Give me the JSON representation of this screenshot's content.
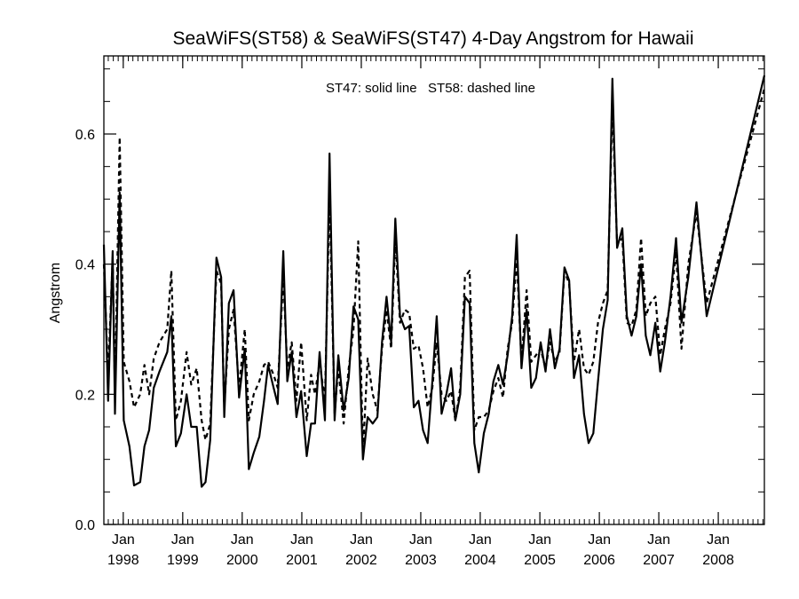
{
  "chart_data": {
    "type": "line",
    "title": "SeaWiFS(ST58) & SeaWiFS(ST47) 4-Day Angstrom for Hawaii",
    "annotation": "ST47: solid line   ST58: dashed line",
    "xlabel": "",
    "ylabel": "Angstrom",
    "xlim": [
      "1997-09-04",
      "2008-10-10"
    ],
    "ylim": [
      0.0,
      0.72
    ],
    "yticks": [
      0.0,
      0.2,
      0.4,
      0.6
    ],
    "ytick_labels": [
      "0.0",
      "0.2",
      "0.4",
      "0.6"
    ],
    "xticks": [
      {
        "date": "1998-01-01",
        "month": "Jan",
        "year": "1998"
      },
      {
        "date": "1999-01-01",
        "month": "Jan",
        "year": "1999"
      },
      {
        "date": "2000-01-01",
        "month": "Jan",
        "year": "2000"
      },
      {
        "date": "2001-01-01",
        "month": "Jan",
        "year": "2001"
      },
      {
        "date": "2002-01-01",
        "month": "Jan",
        "year": "2002"
      },
      {
        "date": "2003-01-01",
        "month": "Jan",
        "year": "2003"
      },
      {
        "date": "2004-01-01",
        "month": "Jan",
        "year": "2004"
      },
      {
        "date": "2005-01-01",
        "month": "Jan",
        "year": "2005"
      },
      {
        "date": "2006-01-01",
        "month": "Jan",
        "year": "2006"
      },
      {
        "date": "2007-01-01",
        "month": "Jan",
        "year": "2007"
      },
      {
        "date": "2008-01-01",
        "month": "Jan",
        "year": "2008"
      }
    ],
    "grid": false,
    "legend": "none",
    "series": [
      {
        "name": "ST47",
        "style": "solid",
        "color": "#000000",
        "points": [
          [
            "1997-09-04",
            0.43
          ],
          [
            "1997-09-30",
            0.19
          ],
          [
            "1997-10-28",
            0.42
          ],
          [
            "1997-11-11",
            0.17
          ],
          [
            "1997-12-10",
            0.51
          ],
          [
            "1998-01-04",
            0.16
          ],
          [
            "1998-02-08",
            0.12
          ],
          [
            "1998-03-08",
            0.06
          ],
          [
            "1998-04-15",
            0.065
          ],
          [
            "1998-05-11",
            0.12
          ],
          [
            "1998-06-09",
            0.145
          ],
          [
            "1998-07-07",
            0.21
          ],
          [
            "1998-08-11",
            0.235
          ],
          [
            "1998-09-28",
            0.265
          ],
          [
            "1998-10-23",
            0.32
          ],
          [
            "1998-11-20",
            0.12
          ],
          [
            "1998-12-21",
            0.14
          ],
          [
            "1999-01-25",
            0.2
          ],
          [
            "1999-02-22",
            0.15
          ],
          [
            "1999-03-28",
            0.15
          ],
          [
            "1999-04-27",
            0.058
          ],
          [
            "1999-05-21",
            0.065
          ],
          [
            "1999-06-19",
            0.13
          ],
          [
            "1999-07-27",
            0.41
          ],
          [
            "1999-08-25",
            0.38
          ],
          [
            "1999-09-13",
            0.165
          ],
          [
            "1999-10-11",
            0.34
          ],
          [
            "1999-11-09",
            0.36
          ],
          [
            "1999-12-13",
            0.195
          ],
          [
            "2000-01-17",
            0.27
          ],
          [
            "2000-02-11",
            0.085
          ],
          [
            "2000-03-12",
            0.11
          ],
          [
            "2000-04-15",
            0.135
          ],
          [
            "2000-05-14",
            0.19
          ],
          [
            "2000-06-08",
            0.245
          ],
          [
            "2000-07-12",
            0.21
          ],
          [
            "2000-08-06",
            0.185
          ],
          [
            "2000-09-09",
            0.42
          ],
          [
            "2000-10-04",
            0.22
          ],
          [
            "2000-10-31",
            0.265
          ],
          [
            "2000-11-29",
            0.165
          ],
          [
            "2000-12-28",
            0.205
          ],
          [
            "2001-01-31",
            0.105
          ],
          [
            "2001-02-27",
            0.155
          ],
          [
            "2001-03-23",
            0.155
          ],
          [
            "2001-04-20",
            0.265
          ],
          [
            "2001-05-23",
            0.16
          ],
          [
            "2001-06-20",
            0.57
          ],
          [
            "2001-07-21",
            0.16
          ],
          [
            "2001-08-13",
            0.26
          ],
          [
            "2001-09-15",
            0.175
          ],
          [
            "2001-10-16",
            0.225
          ],
          [
            "2001-11-14",
            0.335
          ],
          [
            "2001-12-13",
            0.315
          ],
          [
            "2002-01-11",
            0.1
          ],
          [
            "2002-02-09",
            0.165
          ],
          [
            "2002-03-12",
            0.155
          ],
          [
            "2002-04-10",
            0.165
          ],
          [
            "2002-05-08",
            0.28
          ],
          [
            "2002-06-05",
            0.35
          ],
          [
            "2002-07-03",
            0.28
          ],
          [
            "2002-07-29",
            0.47
          ],
          [
            "2002-08-27",
            0.32
          ],
          [
            "2002-09-26",
            0.3
          ],
          [
            "2002-10-22",
            0.305
          ],
          [
            "2002-11-19",
            0.18
          ],
          [
            "2002-12-18",
            0.19
          ],
          [
            "2003-01-15",
            0.145
          ],
          [
            "2003-02-12",
            0.125
          ],
          [
            "2003-03-13",
            0.22
          ],
          [
            "2003-04-09",
            0.32
          ],
          [
            "2003-05-09",
            0.17
          ],
          [
            "2003-06-07",
            0.2
          ],
          [
            "2003-07-06",
            0.24
          ],
          [
            "2003-08-01",
            0.16
          ],
          [
            "2003-08-31",
            0.2
          ],
          [
            "2003-09-29",
            0.35
          ],
          [
            "2003-10-28",
            0.34
          ],
          [
            "2003-11-26",
            0.125
          ],
          [
            "2003-12-23",
            0.08
          ],
          [
            "2004-01-23",
            0.14
          ],
          [
            "2004-02-22",
            0.17
          ],
          [
            "2004-03-22",
            0.22
          ],
          [
            "2004-04-21",
            0.245
          ],
          [
            "2004-05-20",
            0.215
          ],
          [
            "2004-06-17",
            0.26
          ],
          [
            "2004-07-15",
            0.32
          ],
          [
            "2004-08-12",
            0.445
          ],
          [
            "2004-09-10",
            0.24
          ],
          [
            "2004-10-12",
            0.33
          ],
          [
            "2004-11-09",
            0.21
          ],
          [
            "2004-12-08",
            0.225
          ],
          [
            "2005-01-06",
            0.28
          ],
          [
            "2005-02-05",
            0.235
          ],
          [
            "2005-03-04",
            0.3
          ],
          [
            "2005-04-03",
            0.24
          ],
          [
            "2005-05-02",
            0.27
          ],
          [
            "2005-06-01",
            0.395
          ],
          [
            "2005-06-30",
            0.375
          ],
          [
            "2005-07-29",
            0.225
          ],
          [
            "2005-08-30",
            0.26
          ],
          [
            "2005-09-29",
            0.17
          ],
          [
            "2005-10-27",
            0.125
          ],
          [
            "2005-11-25",
            0.14
          ],
          [
            "2005-12-24",
            0.22
          ],
          [
            "2006-01-23",
            0.3
          ],
          [
            "2006-02-21",
            0.345
          ],
          [
            "2006-03-22",
            0.685
          ],
          [
            "2006-04-20",
            0.425
          ],
          [
            "2006-05-22",
            0.455
          ],
          [
            "2006-06-19",
            0.32
          ],
          [
            "2006-07-18",
            0.29
          ],
          [
            "2006-08-16",
            0.32
          ],
          [
            "2006-09-14",
            0.4
          ],
          [
            "2006-10-13",
            0.29
          ],
          [
            "2006-11-10",
            0.26
          ],
          [
            "2006-12-11",
            0.31
          ],
          [
            "2007-01-10",
            0.235
          ],
          [
            "2007-02-07",
            0.28
          ],
          [
            "2007-03-14",
            0.35
          ],
          [
            "2007-04-17",
            0.44
          ],
          [
            "2007-05-20",
            0.31
          ],
          [
            "2007-07-01",
            0.38
          ],
          [
            "2007-08-20",
            0.495
          ],
          [
            "2007-10-22",
            0.32
          ],
          [
            "2008-10-10",
            0.69
          ]
        ]
      },
      {
        "name": "ST58",
        "style": "dashed",
        "color": "#000000",
        "points": [
          [
            "1997-09-04",
            0.4
          ],
          [
            "1997-09-30",
            0.23
          ],
          [
            "1997-10-28",
            0.41
          ],
          [
            "1997-11-11",
            0.2
          ],
          [
            "1997-12-10",
            0.595
          ],
          [
            "1998-01-04",
            0.25
          ],
          [
            "1998-02-08",
            0.22
          ],
          [
            "1998-03-08",
            0.18
          ],
          [
            "1998-04-15",
            0.2
          ],
          [
            "1998-05-11",
            0.245
          ],
          [
            "1998-06-09",
            0.2
          ],
          [
            "1998-07-07",
            0.255
          ],
          [
            "1998-08-11",
            0.28
          ],
          [
            "1998-09-28",
            0.3
          ],
          [
            "1998-10-23",
            0.39
          ],
          [
            "1998-11-20",
            0.16
          ],
          [
            "1998-12-21",
            0.19
          ],
          [
            "1999-01-25",
            0.265
          ],
          [
            "1999-02-22",
            0.215
          ],
          [
            "1999-03-28",
            0.24
          ],
          [
            "1999-04-27",
            0.16
          ],
          [
            "1999-05-21",
            0.13
          ],
          [
            "1999-06-19",
            0.155
          ],
          [
            "1999-07-27",
            0.39
          ],
          [
            "1999-08-25",
            0.37
          ],
          [
            "1999-09-13",
            0.18
          ],
          [
            "1999-10-11",
            0.3
          ],
          [
            "1999-11-09",
            0.33
          ],
          [
            "1999-12-13",
            0.21
          ],
          [
            "2000-01-17",
            0.3
          ],
          [
            "2000-02-11",
            0.16
          ],
          [
            "2000-03-12",
            0.2
          ],
          [
            "2000-04-15",
            0.22
          ],
          [
            "2000-05-14",
            0.245
          ],
          [
            "2000-06-08",
            0.25
          ],
          [
            "2000-07-12",
            0.23
          ],
          [
            "2000-08-06",
            0.21
          ],
          [
            "2000-09-09",
            0.38
          ],
          [
            "2000-10-04",
            0.24
          ],
          [
            "2000-10-31",
            0.28
          ],
          [
            "2000-11-29",
            0.19
          ],
          [
            "2000-12-28",
            0.28
          ],
          [
            "2001-01-31",
            0.16
          ],
          [
            "2001-02-27",
            0.23
          ],
          [
            "2001-03-23",
            0.2
          ],
          [
            "2001-04-20",
            0.25
          ],
          [
            "2001-05-23",
            0.19
          ],
          [
            "2001-06-20",
            0.51
          ],
          [
            "2001-07-21",
            0.17
          ],
          [
            "2001-08-13",
            0.24
          ],
          [
            "2001-09-15",
            0.155
          ],
          [
            "2001-10-16",
            0.24
          ],
          [
            "2001-11-14",
            0.3
          ],
          [
            "2001-12-13",
            0.435
          ],
          [
            "2002-01-11",
            0.11
          ],
          [
            "2002-02-09",
            0.255
          ],
          [
            "2002-03-12",
            0.2
          ],
          [
            "2002-04-10",
            0.175
          ],
          [
            "2002-05-08",
            0.27
          ],
          [
            "2002-06-05",
            0.33
          ],
          [
            "2002-07-03",
            0.27
          ],
          [
            "2002-07-29",
            0.44
          ],
          [
            "2002-08-27",
            0.31
          ],
          [
            "2002-09-26",
            0.33
          ],
          [
            "2002-10-22",
            0.325
          ],
          [
            "2002-11-19",
            0.27
          ],
          [
            "2002-12-18",
            0.275
          ],
          [
            "2003-01-15",
            0.24
          ],
          [
            "2003-02-12",
            0.18
          ],
          [
            "2003-03-13",
            0.21
          ],
          [
            "2003-04-09",
            0.28
          ],
          [
            "2003-05-09",
            0.2
          ],
          [
            "2003-06-07",
            0.19
          ],
          [
            "2003-07-06",
            0.205
          ],
          [
            "2003-08-01",
            0.16
          ],
          [
            "2003-08-31",
            0.21
          ],
          [
            "2003-09-29",
            0.38
          ],
          [
            "2003-10-28",
            0.39
          ],
          [
            "2003-11-26",
            0.145
          ],
          [
            "2003-12-23",
            0.165
          ],
          [
            "2004-01-23",
            0.165
          ],
          [
            "2004-02-22",
            0.175
          ],
          [
            "2004-03-22",
            0.205
          ],
          [
            "2004-04-21",
            0.225
          ],
          [
            "2004-05-20",
            0.195
          ],
          [
            "2004-06-17",
            0.27
          ],
          [
            "2004-07-15",
            0.31
          ],
          [
            "2004-08-12",
            0.41
          ],
          [
            "2004-09-10",
            0.25
          ],
          [
            "2004-10-12",
            0.36
          ],
          [
            "2004-11-09",
            0.25
          ],
          [
            "2004-12-08",
            0.26
          ],
          [
            "2005-01-06",
            0.27
          ],
          [
            "2005-02-05",
            0.24
          ],
          [
            "2005-03-04",
            0.28
          ],
          [
            "2005-04-03",
            0.25
          ],
          [
            "2005-05-02",
            0.265
          ],
          [
            "2005-06-01",
            0.39
          ],
          [
            "2005-06-30",
            0.37
          ],
          [
            "2005-07-29",
            0.25
          ],
          [
            "2005-08-30",
            0.3
          ],
          [
            "2005-09-29",
            0.24
          ],
          [
            "2005-10-27",
            0.23
          ],
          [
            "2005-11-25",
            0.25
          ],
          [
            "2005-12-24",
            0.31
          ],
          [
            "2006-01-23",
            0.34
          ],
          [
            "2006-02-21",
            0.36
          ],
          [
            "2006-03-22",
            0.65
          ],
          [
            "2006-04-20",
            0.43
          ],
          [
            "2006-05-22",
            0.44
          ],
          [
            "2006-06-19",
            0.31
          ],
          [
            "2006-07-18",
            0.305
          ],
          [
            "2006-08-16",
            0.33
          ],
          [
            "2006-09-14",
            0.44
          ],
          [
            "2006-10-13",
            0.32
          ],
          [
            "2006-11-10",
            0.34
          ],
          [
            "2006-12-11",
            0.35
          ],
          [
            "2007-01-10",
            0.26
          ],
          [
            "2007-02-07",
            0.3
          ],
          [
            "2007-03-14",
            0.34
          ],
          [
            "2007-04-17",
            0.42
          ],
          [
            "2007-05-20",
            0.27
          ],
          [
            "2007-07-01",
            0.4
          ],
          [
            "2007-08-20",
            0.48
          ],
          [
            "2007-10-22",
            0.34
          ],
          [
            "2008-10-10",
            0.67
          ]
        ]
      }
    ]
  }
}
